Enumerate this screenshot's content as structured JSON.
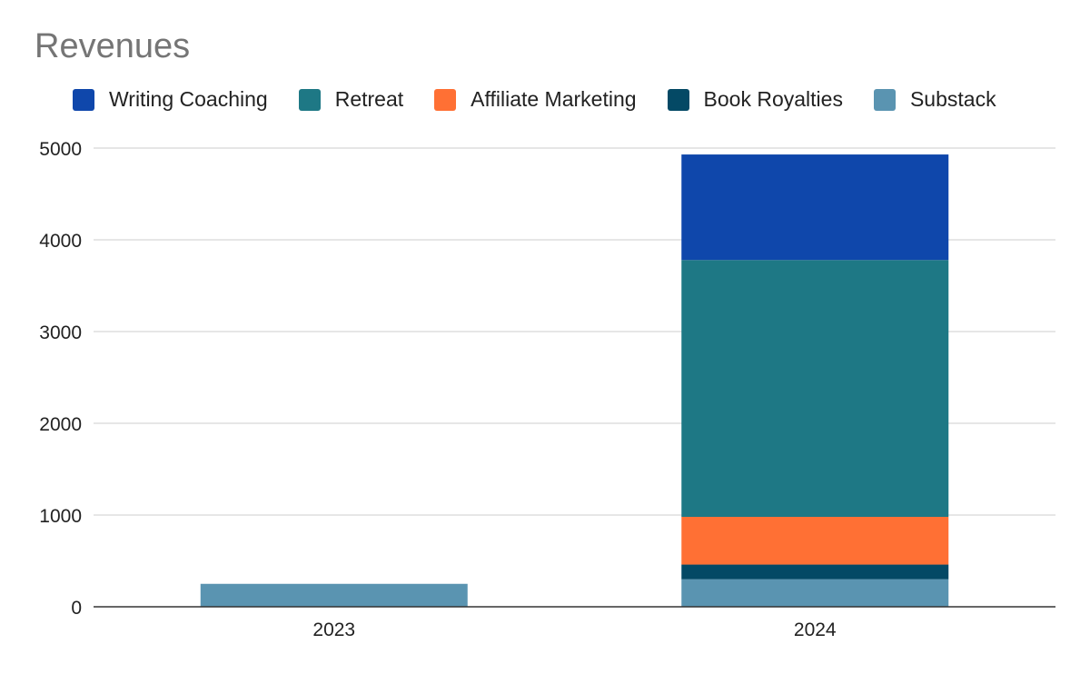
{
  "chart_data": {
    "type": "bar",
    "stacked": true,
    "title": "Revenues",
    "xlabel": "",
    "ylabel": "",
    "categories": [
      "2023",
      "2024"
    ],
    "ylim": [
      0,
      5000
    ],
    "yticks": [
      0,
      1000,
      2000,
      3000,
      4000,
      5000
    ],
    "grid": true,
    "legend_position": "top",
    "series": [
      {
        "name": "Substack",
        "color": "#5a94b1",
        "values": [
          250,
          300
        ]
      },
      {
        "name": "Book Royalties",
        "color": "#044965",
        "values": [
          0,
          160
        ]
      },
      {
        "name": "Affiliate Marketing",
        "color": "#ff7034",
        "values": [
          0,
          520
        ]
      },
      {
        "name": "Retreat",
        "color": "#1e7885",
        "values": [
          0,
          2800
        ]
      },
      {
        "name": "Writing Coaching",
        "color": "#0f47ab",
        "values": [
          0,
          1150
        ]
      }
    ],
    "legend_order": [
      "Writing Coaching",
      "Retreat",
      "Affiliate Marketing",
      "Book Royalties",
      "Substack"
    ]
  }
}
